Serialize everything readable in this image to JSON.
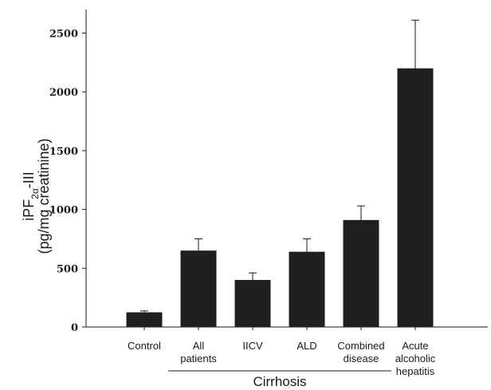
{
  "chart_data": {
    "type": "bar",
    "categories": [
      [
        "Control"
      ],
      [
        "All",
        "patients"
      ],
      [
        "IICV"
      ],
      [
        "ALD"
      ],
      [
        "Combined",
        "disease"
      ],
      [
        "Acute",
        "alcoholic",
        "hepatitis"
      ]
    ],
    "values": [
      125,
      650,
      400,
      640,
      910,
      2200
    ],
    "errors": [
      12,
      100,
      60,
      110,
      120,
      410
    ],
    "yticks": [
      0,
      500,
      1000,
      1500,
      2000,
      2500
    ],
    "ylim": [
      0,
      2700
    ],
    "ylabel": {
      "main": "iPF",
      "subscript": "2α",
      "suffix": "-III",
      "unit": "(pg/mg creatinine)"
    },
    "group_label": "Cirrhosis",
    "group_span": [
      1,
      4
    ],
    "bar_color": "#1f1f1f",
    "grid": false
  }
}
